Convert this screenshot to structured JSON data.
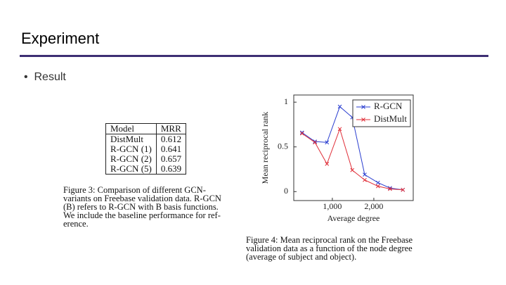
{
  "header": {
    "title": "Experiment",
    "bullet": "Result"
  },
  "table": {
    "columns": [
      "Model",
      "MRR"
    ],
    "rows": [
      [
        "DistMult",
        "0.612"
      ],
      [
        "R-GCN (1)",
        "0.641"
      ],
      [
        "R-GCN (2)",
        "0.657"
      ],
      [
        "R-GCN (5)",
        "0.639"
      ]
    ],
    "caption": [
      "Figure 3:  Comparison of different GCN-",
      "variants on Freebase validation data. R-GCN",
      "(B) refers to R-GCN with B basis functions.",
      "We include the baseline performance for ref-",
      "erence."
    ]
  },
  "chart": {
    "type": "line",
    "xlabel": "Average degree",
    "ylabel": "Mean reciprocal rank",
    "x": [
      270,
      580,
      870,
      1180,
      1480,
      1780,
      2100,
      2390,
      2700
    ],
    "series": [
      {
        "name": "R-GCN",
        "color": "#2b3fd0",
        "values": [
          0.66,
          0.56,
          0.55,
          0.95,
          0.83,
          0.19,
          0.1,
          0.04,
          0.02
        ]
      },
      {
        "name": "DistMult",
        "color": "#e0303a",
        "values": [
          0.65,
          0.55,
          0.31,
          0.7,
          0.24,
          0.13,
          0.06,
          0.03,
          0.02
        ]
      }
    ],
    "xlim": [
      70,
      2950
    ],
    "ylim": [
      -0.1,
      1.08
    ],
    "xticks": [
      {
        "value": 1000,
        "label": "1,000"
      },
      {
        "value": 2000,
        "label": "2,000"
      }
    ],
    "yticks": [
      0,
      0.5,
      1
    ],
    "caption": [
      "Figure 4: Mean reciprocal rank on the Freebase",
      "validation data as a function of the node degree",
      "(average of subject and object)."
    ]
  }
}
